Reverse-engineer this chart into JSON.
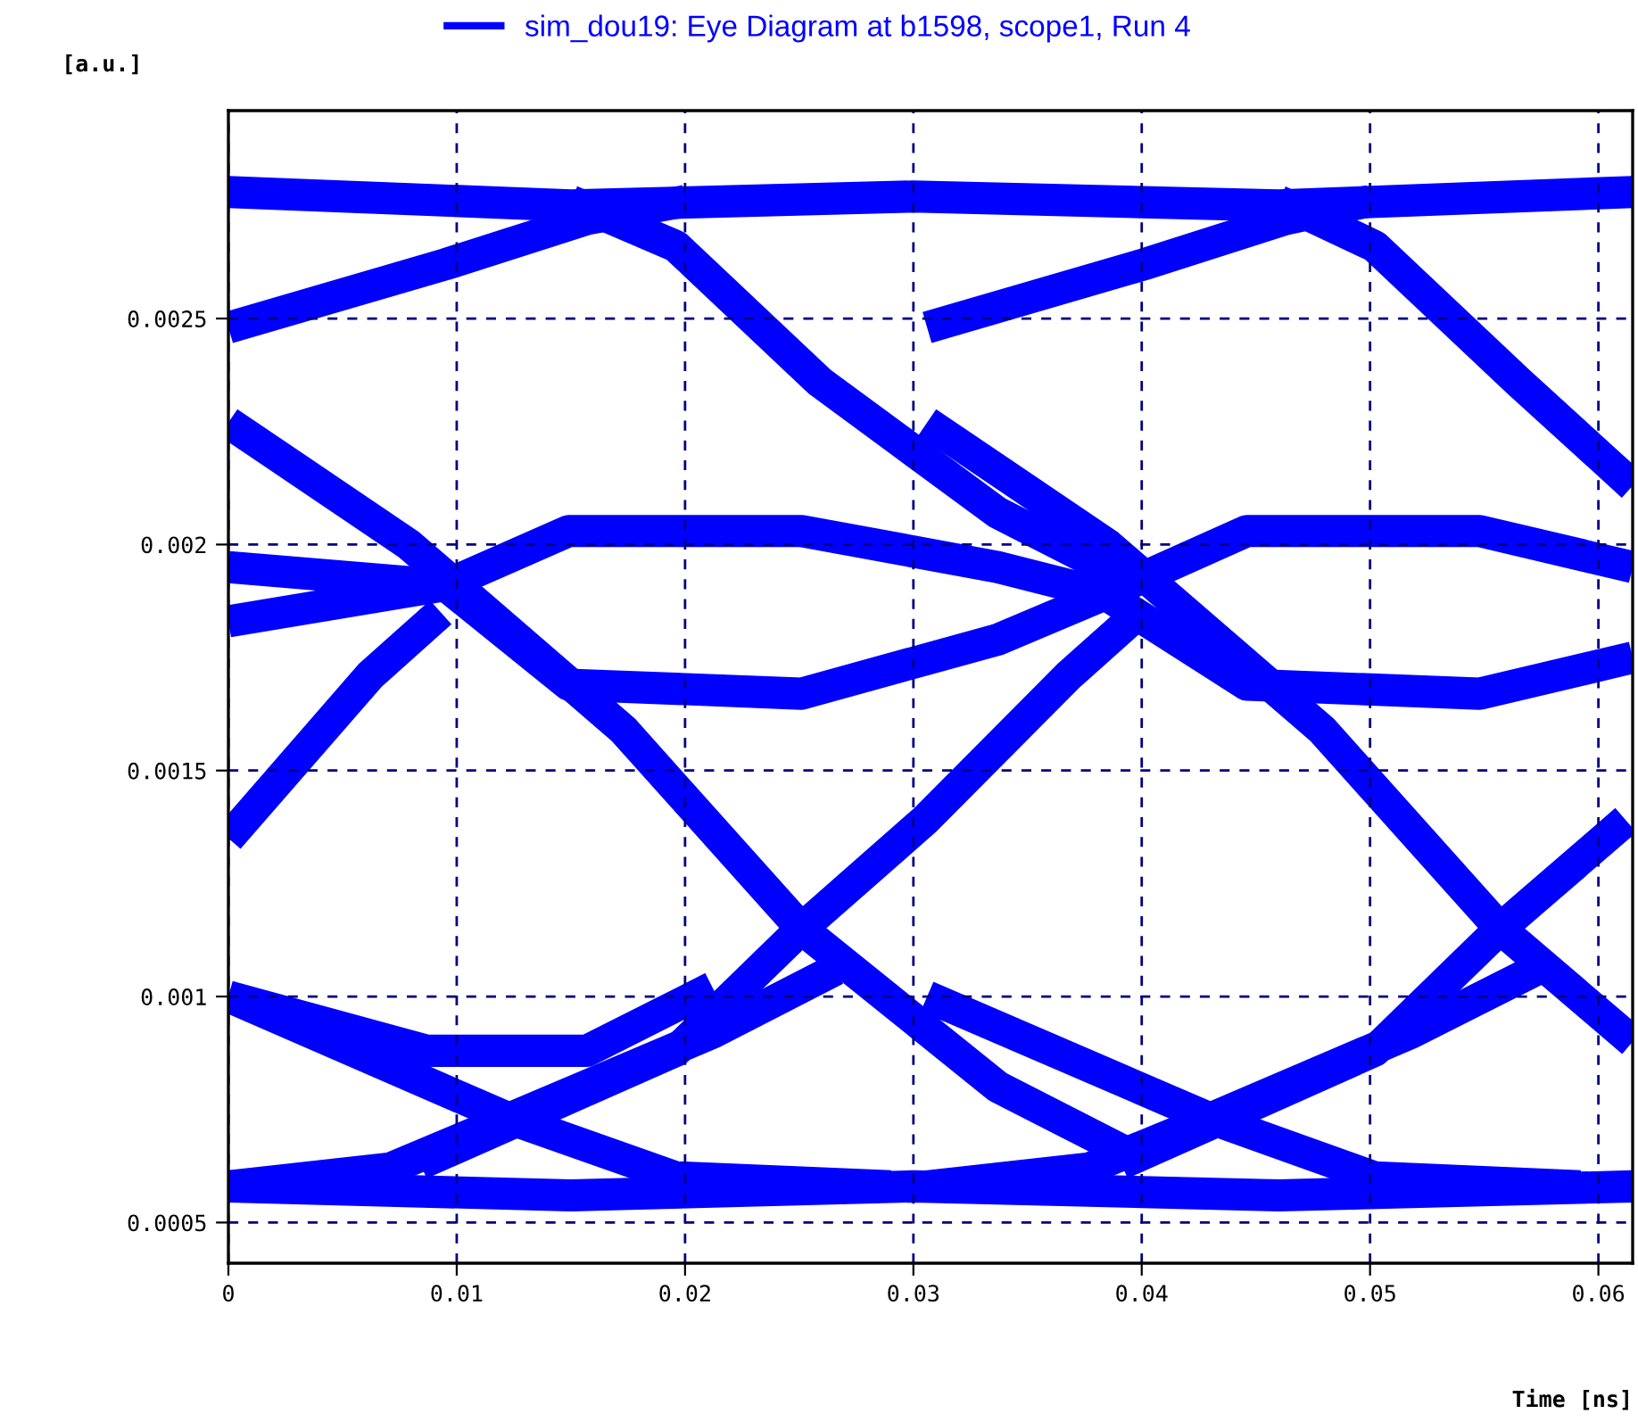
{
  "chart_data": {
    "type": "line",
    "xlabel": "Time [ns]",
    "ylabel": "[a.u.]",
    "xlim": [
      0,
      0.0615
    ],
    "ylim": [
      0.00041,
      0.00296
    ],
    "xticks": [
      0,
      0.01,
      0.02,
      0.03,
      0.04,
      0.05,
      0.06
    ],
    "yticks": [
      0.0005,
      0.001,
      0.0015,
      0.002,
      0.0025
    ],
    "grid": true,
    "legend": "top",
    "marker": "none",
    "line_style": "solid",
    "series": [
      {
        "name": "sim_dou19: Eye Diagram at b1598, scope1, Run 4",
        "color": "#0000ff",
        "x": [
          0,
          0.015,
          0.03,
          0.046,
          0.0615
        ],
        "values": [
          0.00278,
          0.00275,
          0.00277,
          0.00275,
          0.00278
        ]
      },
      {
        "color": "#0000ff",
        "x": [
          0,
          0.0095,
          0.0157,
          0.02
        ],
        "values": [
          0.00248,
          0.00262,
          0.00272,
          0.00276
        ]
      },
      {
        "color": "#0000ff",
        "x": [
          0.0306,
          0.0401,
          0.0463,
          0.05
        ],
        "values": [
          0.00248,
          0.00262,
          0.00272,
          0.00276
        ]
      },
      {
        "color": "#0000ff",
        "x": [
          0.015,
          0.0196,
          0.0259,
          0.0337,
          0.0399
        ],
        "values": [
          0.00276,
          0.00266,
          0.00236,
          0.00207,
          0.00191
        ]
      },
      {
        "color": "#0000ff",
        "x": [
          0.046,
          0.0502,
          0.0565,
          0.0615
        ],
        "values": [
          0.00276,
          0.00266,
          0.00236,
          0.00213
        ]
      },
      {
        "color": "#0000ff",
        "x": [
          0,
          0.0095,
          0.0149,
          0.0251,
          0.0337,
          0.0384,
          0.0446,
          0.0548,
          0.0615
        ],
        "values": [
          0.00195,
          0.00191,
          0.00203,
          0.00203,
          0.00195,
          0.00189,
          0.00203,
          0.00203,
          0.00195
        ]
      },
      {
        "color": "#0000ff",
        "x": [
          0,
          0.0095,
          0.0149,
          0.0251,
          0.0337,
          0.0384,
          0.0446,
          0.0548,
          0.0615
        ],
        "values": [
          0.00183,
          0.00191,
          0.00169,
          0.00167,
          0.00179,
          0.00189,
          0.00169,
          0.00167,
          0.00175
        ]
      },
      {
        "color": "#0000ff",
        "x": [
          0,
          0.0079,
          0.0173,
          0.0251,
          0.0337,
          0.0399
        ],
        "values": [
          0.00227,
          0.002,
          0.00159,
          0.00115,
          0.0008,
          0.00064
        ]
      },
      {
        "color": "#0000ff",
        "x": [
          0.0306,
          0.0385,
          0.0479,
          0.0557,
          0.0615
        ],
        "values": [
          0.00227,
          0.002,
          0.00159,
          0.00115,
          0.0009
        ]
      },
      {
        "color": "#0000ff",
        "x": [
          0,
          0.0062,
          0.0093
        ],
        "values": [
          0.00135,
          0.00171,
          0.00185
        ]
      },
      {
        "color": "#0000ff",
        "x": [
          0.0084,
          0.0196,
          0.0251,
          0.0305,
          0.0368,
          0.0399
        ],
        "values": [
          0.00063,
          0.00088,
          0.00115,
          0.00139,
          0.00171,
          0.00185
        ]
      },
      {
        "color": "#0000ff",
        "x": [
          0.0391,
          0.0502,
          0.0557,
          0.0612
        ],
        "values": [
          0.00063,
          0.00088,
          0.00115,
          0.00139
        ]
      },
      {
        "color": "#0000ff",
        "x": [
          0,
          0.0123,
          0.0196,
          0.029
        ],
        "values": [
          0.001,
          0.00073,
          0.0006,
          0.00058
        ]
      },
      {
        "color": "#0000ff",
        "x": [
          0,
          0.0071,
          0.0123,
          0.0212,
          0.0266
        ],
        "values": [
          0.00058,
          0.00062,
          0.00073,
          0.00092,
          0.00106
        ]
      },
      {
        "color": "#0000ff",
        "x": [
          0,
          0.0087,
          0.0157,
          0.0212
        ],
        "values": [
          0.001,
          0.00088,
          0.00088,
          0.00102
        ]
      },
      {
        "color": "#0000ff",
        "x": [
          0.0306,
          0.043,
          0.0502,
          0.0592
        ],
        "values": [
          0.001,
          0.00073,
          0.0006,
          0.00058
        ]
      },
      {
        "color": "#0000ff",
        "x": [
          0.0306,
          0.0377,
          0.043,
          0.0518,
          0.0573
        ],
        "values": [
          0.00058,
          0.00062,
          0.00073,
          0.00092,
          0.00106
        ]
      },
      {
        "color": "#0000ff",
        "x": [
          0,
          0.015,
          0.03,
          0.046,
          0.0615
        ],
        "values": [
          0.00058,
          0.00056,
          0.00058,
          0.00056,
          0.00058
        ]
      }
    ]
  }
}
